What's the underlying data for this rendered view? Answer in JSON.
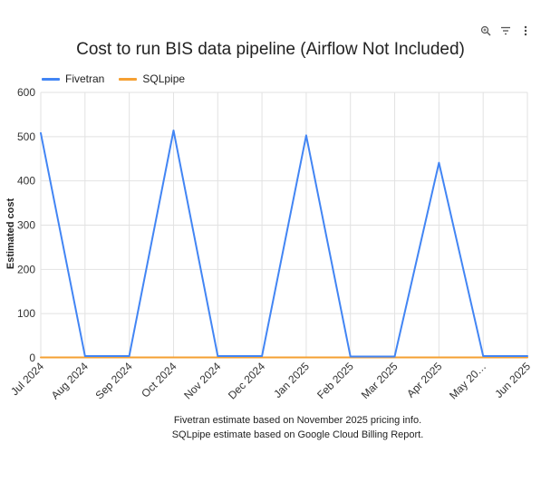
{
  "toolbar": {
    "icons": [
      "zoom-icon",
      "filter-icon",
      "more-options-icon"
    ]
  },
  "chart_data": {
    "type": "line",
    "title": "Cost to run BIS data pipeline (Airflow Not Included)",
    "xlabel": "",
    "ylabel": "Estimated cost",
    "categories": [
      "Jul 2024",
      "Aug 2024",
      "Sep 2024",
      "Oct 2024",
      "Nov 2024",
      "Dec 2024",
      "Jan 2025",
      "Feb 2025",
      "Mar 2025",
      "Apr 2025",
      "May 20…",
      "Jun 2025"
    ],
    "series": [
      {
        "name": "Fivetran",
        "color": "#4285f4",
        "values": [
          508,
          4,
          4,
          514,
          4,
          4,
          503,
          3,
          3,
          441,
          4,
          4
        ]
      },
      {
        "name": "SQLpipe",
        "color": "#f5a032",
        "values": [
          1,
          1,
          1,
          1,
          1,
          1,
          1,
          1,
          1,
          1,
          1,
          1
        ]
      }
    ],
    "ylim": [
      0,
      600
    ],
    "yticks": [
      0,
      100,
      200,
      300,
      400,
      500,
      600
    ],
    "grid": true,
    "legend_position": "top-left"
  },
  "notes": {
    "line1": "Fivetran estimate based on November 2025 pricing info.",
    "line2": "SQLpipe estimate based on Google Cloud Billing Report."
  }
}
